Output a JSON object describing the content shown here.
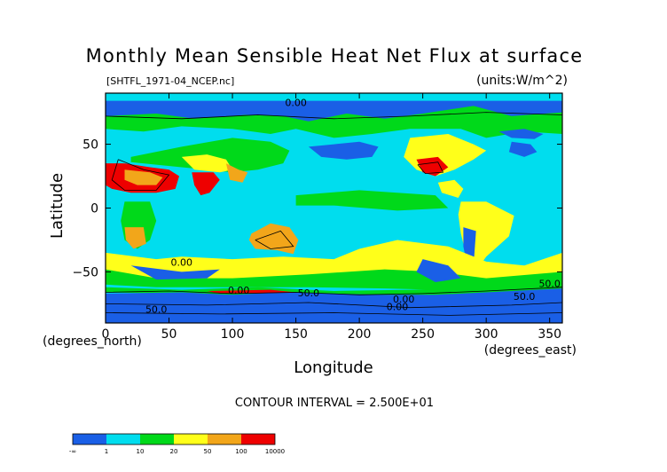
{
  "chart_data": {
    "type": "heatmap",
    "title": "Monthly Mean Sensible Heat Net Flux at surface",
    "file_label": "[SHTFL_1971-04_NCEP.nc]",
    "units_label": "(units:W/m^2)",
    "xlabel": "Longitude",
    "ylabel": "Latitude",
    "x_unit_label": "(degrees_east)",
    "y_unit_label": "(degrees_north)",
    "xlim": [
      0,
      360
    ],
    "ylim": [
      -90,
      90
    ],
    "x_ticks": [
      0,
      50,
      100,
      150,
      200,
      250,
      300,
      350
    ],
    "y_ticks": [
      50,
      0,
      -50
    ],
    "y_tick_labels": [
      "50",
      "0",
      "−50"
    ],
    "contour_interval_label": "CONTOUR INTERVAL = 2.500E+01",
    "contour_labels": [
      "0.00",
      "0.00",
      "0.00",
      "50.0",
      "50.0",
      "0.00",
      "0.00",
      "50.0",
      "50.0"
    ],
    "legend": {
      "bin_colors": [
        "#1a5fe6",
        "#00ddee",
        "#00d91a",
        "#ffff1a",
        "#f2a61a",
        "#ee0000"
      ],
      "boundaries": [
        "-∞",
        "1",
        "10",
        "20",
        "50",
        "100",
        "10000"
      ]
    },
    "regions": [
      {
        "name": "ocean background",
        "bin": 1
      },
      {
        "name": "southern ocean band",
        "bin": 2
      },
      {
        "name": "high latitude",
        "bin": 0
      },
      {
        "name": "antarctica",
        "bin": 0
      },
      {
        "name": "north africa / arabia",
        "bin": 5
      },
      {
        "name": "india",
        "bin": 5
      },
      {
        "name": "southwest north america",
        "bin": 5
      },
      {
        "name": "australia",
        "bin": 4
      },
      {
        "name": "south america interior",
        "bin": 3
      },
      {
        "name": "southern africa",
        "bin": 4
      }
    ]
  }
}
